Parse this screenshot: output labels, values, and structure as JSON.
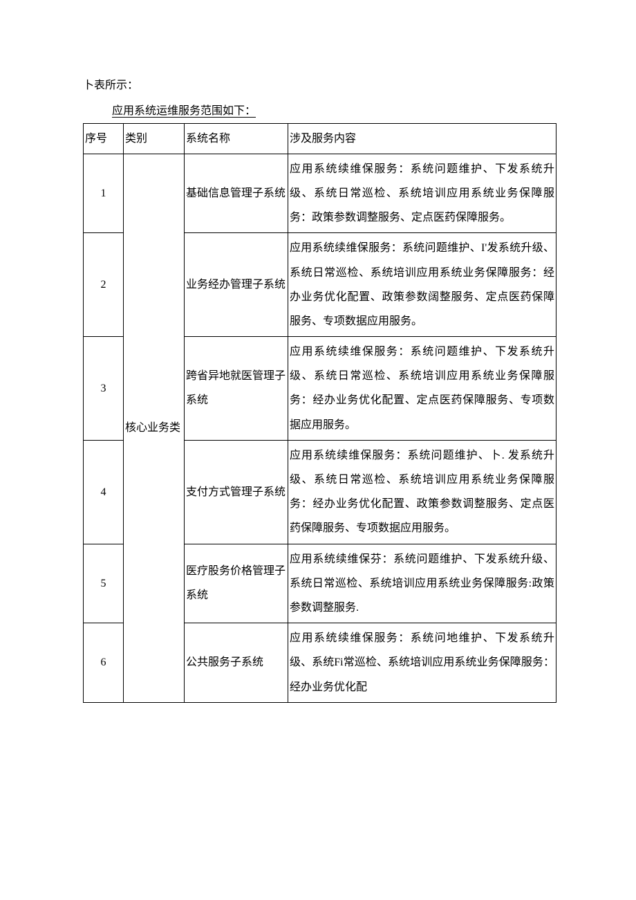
{
  "intro": "卜表所示：",
  "subtitle": "应用系统运维服务范围如下：",
  "table": {
    "columns": [
      "序号",
      "类别",
      "系统名称",
      "涉及服务内容"
    ],
    "category": "核心业务类",
    "rows": [
      {
        "seq": "1",
        "system": "基础信息管理子系统",
        "content": "应用系统续维保服务：系统问题维护、下发系统升级、系统日常巡检、系统培训应用系统业务保障服务：政策参数调整服务、定点医药保障服务。"
      },
      {
        "seq": "2",
        "system": "业务经办管理子系统",
        "content": "应用系统续维保服务：系统问题维护、I'发系统升级、系统日常巡检、系统培训应用系统业务保障服务：经办业务优化配置、政策参数阔整服务、定点医药保障服务、专项数据应用服务。"
      },
      {
        "seq": "3",
        "system": "跨省异地就医管理子系统",
        "content": "应用系统续维保服务：系统问题维护、下发系统升级、系统日常巡检、系统培训应用系统业务保障服务：经办业务优化配置、定点医药保障服务、专项数据应用服务。"
      },
      {
        "seq": "4",
        "system": "支付方式管理子系统",
        "content": "应用系统续维保服务：系统问题维护、卜. 发系统升级、系统日常巡检、系统培训应用系统业务保障服务：经办业务优化配置、政策参数调整服务、定点医药保障服务、专项数据应用服务。"
      },
      {
        "seq": "5",
        "system": "医疗股务价格管理子系统",
        "content": "应用系统续维保芬：系统问题维护、下发系统升级、系统日常巡检、系统培训应用系统业务保障服务:政策参数调整服务."
      },
      {
        "seq": "6",
        "system": "公共服务子系统",
        "content": "应用系统续维保服务：系统问地维护、下发系统升级、系统Fi常巡检、系统培训应用系统业务保障服务：经办业务优化配"
      }
    ]
  }
}
